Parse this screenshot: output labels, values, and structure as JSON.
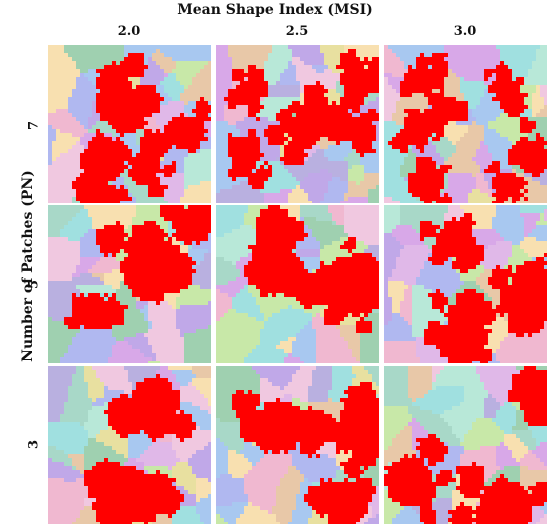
{
  "figure": {
    "title": "Mean Shape Index (MSI)",
    "ylabel": "Number of Patches (PN)",
    "columns": [
      "2.0",
      "2.5",
      "3.0"
    ],
    "rows": [
      "7",
      "5",
      "3"
    ]
  },
  "colors": {
    "highlight": "#ff0000",
    "background_palette": [
      "#b9b0e0",
      "#a8d8c8",
      "#f0b8d0",
      "#c8e8a8",
      "#e8c8a8",
      "#a8c8f0",
      "#d8a8e8",
      "#f8e0b0",
      "#b8e8d8",
      "#e0b8e8",
      "#9fd0b0",
      "#c0a8e8",
      "#f0c8e0",
      "#a0e0e0",
      "#e8e0a0",
      "#b0b8f0"
    ]
  },
  "panels": [
    {
      "row": "7",
      "msi": "2.0",
      "patch_count": 7,
      "seed": 11
    },
    {
      "row": "7",
      "msi": "2.5",
      "patch_count": 7,
      "seed": 23
    },
    {
      "row": "7",
      "msi": "3.0",
      "patch_count": 7,
      "seed": 37
    },
    {
      "row": "5",
      "msi": "2.0",
      "patch_count": 5,
      "seed": 41
    },
    {
      "row": "5",
      "msi": "2.5",
      "patch_count": 5,
      "seed": 53
    },
    {
      "row": "5",
      "msi": "3.0",
      "patch_count": 5,
      "seed": 67
    },
    {
      "row": "3",
      "msi": "2.0",
      "patch_count": 3,
      "seed": 71
    },
    {
      "row": "3",
      "msi": "2.5",
      "patch_count": 3,
      "seed": 83
    },
    {
      "row": "3",
      "msi": "3.0",
      "patch_count": 3,
      "seed": 97
    }
  ]
}
